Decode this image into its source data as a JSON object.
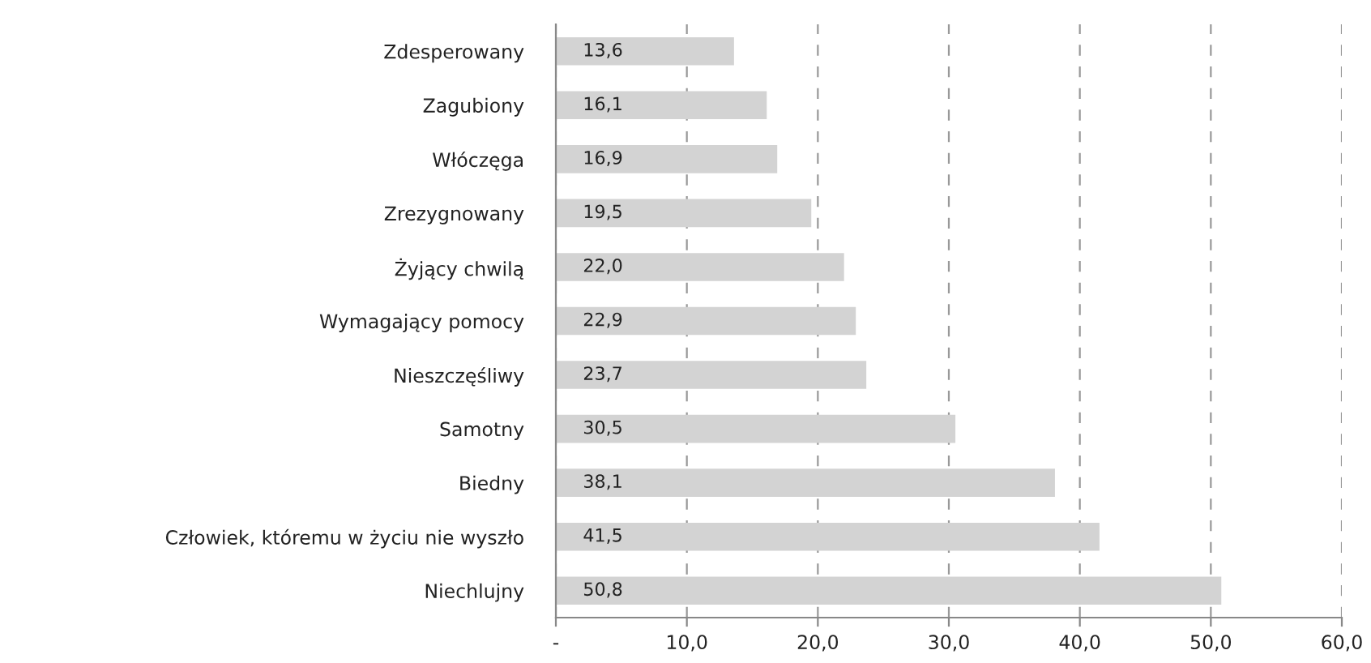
{
  "chart_data": {
    "type": "bar",
    "orientation": "horizontal",
    "categories": [
      "Zdesperowany",
      "Zagubiony",
      "Włóczęga",
      "Zrezygnowany",
      "Żyjący chwilą",
      "Wymagający pomocy",
      "Nieszczęśliwy",
      "Samotny",
      "Biedny",
      "Człowiek, któremu w życiu nie wyszło",
      "Niechlujny"
    ],
    "values": [
      13.6,
      16.1,
      16.9,
      19.5,
      22.0,
      22.9,
      23.7,
      30.5,
      38.1,
      41.5,
      50.8
    ],
    "value_labels": [
      "13,6",
      "16,1",
      "16,9",
      "19,5",
      "22,0",
      "22,9",
      "23,7",
      "30,5",
      "38,1",
      "41,5",
      "50,8"
    ],
    "color": "#d3d3d3",
    "xlim": [
      0,
      60
    ],
    "xticks": [
      {
        "value": 0,
        "label": "-"
      },
      {
        "value": 10,
        "label": "10,0"
      },
      {
        "value": 20,
        "label": "20,0"
      },
      {
        "value": 30,
        "label": "30,0"
      },
      {
        "value": 40,
        "label": "40,0"
      },
      {
        "value": 50,
        "label": "50,0"
      },
      {
        "value": 60,
        "label": "60,0"
      }
    ],
    "grid": "x",
    "legend": false
  }
}
